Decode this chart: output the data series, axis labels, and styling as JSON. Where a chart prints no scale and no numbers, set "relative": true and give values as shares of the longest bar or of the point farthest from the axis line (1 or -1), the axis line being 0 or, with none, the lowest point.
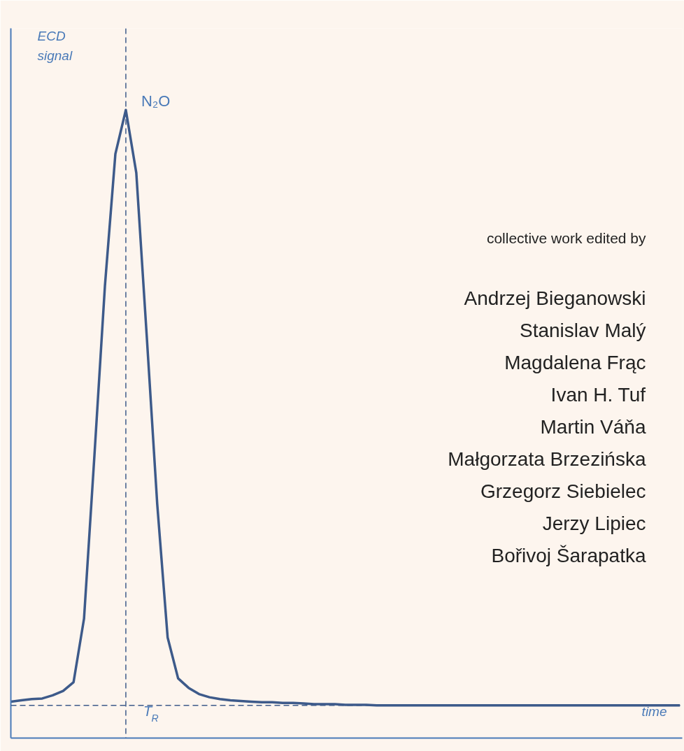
{
  "chart_data": {
    "type": "line",
    "relative": true,
    "xlabel": "time",
    "ylabel": "ECD signal",
    "categories": [
      null,
      null,
      null,
      null,
      null,
      null,
      null,
      null,
      null,
      null,
      null,
      null,
      null,
      null,
      null,
      null,
      null,
      null,
      null,
      null,
      null,
      null,
      null,
      null,
      null,
      null,
      null,
      null,
      null,
      null,
      null,
      null,
      null,
      null,
      null,
      null,
      null,
      null,
      null,
      null,
      null,
      null,
      null,
      null,
      null,
      null,
      null,
      null,
      null,
      null,
      null,
      null,
      null,
      null,
      null,
      null,
      null,
      null,
      null,
      null,
      null,
      null,
      null,
      null,
      null
    ],
    "series": [
      {
        "color": "#3d5a8a",
        "values": [
          0.058,
          0.06,
          0.062,
          0.063,
          0.068,
          0.075,
          0.089,
          0.19,
          0.451,
          0.72,
          0.93,
          1.0,
          0.9,
          0.64,
          0.373,
          0.16,
          0.095,
          0.08,
          0.07,
          0.065,
          0.062,
          0.06,
          0.059,
          0.058,
          0.057,
          0.057,
          0.056,
          0.056,
          0.055,
          0.054,
          0.054,
          0.054,
          0.053,
          0.053,
          0.053,
          0.052,
          0.052,
          0.052,
          0.052,
          0.052,
          0.052,
          0.052,
          0.052,
          0.052,
          0.052,
          0.052,
          0.052,
          0.052,
          0.052,
          0.052,
          0.052,
          0.052,
          0.052,
          0.052,
          0.052,
          0.052,
          0.052,
          0.052,
          0.052,
          0.052,
          0.052,
          0.052,
          0.052,
          0.052,
          0.052
        ]
      }
    ],
    "ref_lines": [
      {
        "axis": "x",
        "label": "T$_{R}$",
        "color": "#3d5a8a",
        "line_style": "dashed"
      },
      {
        "axis": "y",
        "value": 0.052,
        "color": "#3d5a8a",
        "line_style": "dashed"
      }
    ],
    "annotations": [
      "N₂O",
      "collective work edited by",
      "Andrzej Bieganowski",
      "Stanislav Malý",
      "Magdalena Frąc",
      "Ivan H. Tuf",
      "Martin Váňa",
      "Małgorzata Brzezińska",
      "Grzegorz Siebielec",
      "Jerzy Lipiec",
      "Bořivoj Šarapatka"
    ]
  }
}
